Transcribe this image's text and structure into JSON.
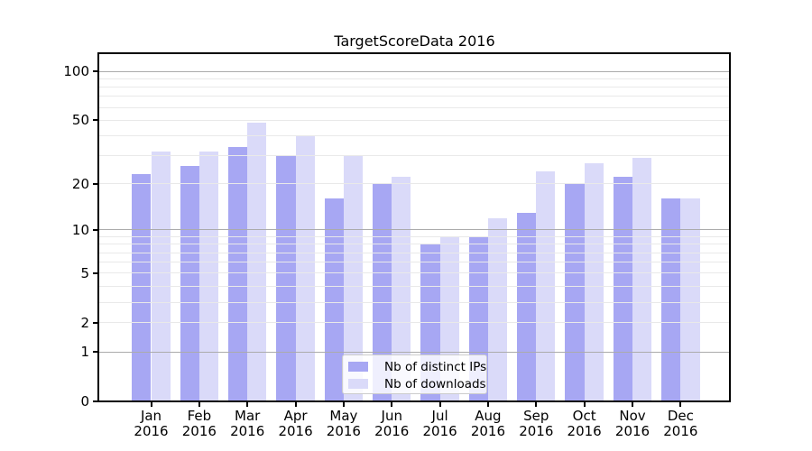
{
  "chart_data": {
    "type": "bar",
    "title": "TargetScoreData 2016",
    "categories": [
      "Jan",
      "Feb",
      "Mar",
      "Apr",
      "May",
      "Jun",
      "Jul",
      "Aug",
      "Sep",
      "Oct",
      "Nov",
      "Dec"
    ],
    "category_year": "2016",
    "series": [
      {
        "name": "Nb of distinct IPs",
        "color": "#a7a7f3",
        "values": [
          23,
          26,
          34,
          30,
          16,
          20,
          8,
          9,
          13,
          20,
          22,
          16
        ]
      },
      {
        "name": "Nb of downloads",
        "color": "#dadaf9",
        "values": [
          32,
          32,
          48,
          40,
          30,
          22,
          9,
          12,
          24,
          27,
          29,
          16
        ]
      }
    ],
    "xlabel": "",
    "ylabel": "",
    "y_scale": "symlog-ln(1+v)",
    "ylim": [
      0,
      128
    ],
    "y_ticks": [
      100,
      50,
      20,
      10,
      5,
      2,
      1,
      0
    ],
    "y_major_gridlines": [
      1,
      10,
      100
    ],
    "y_minor_gridlines": [
      2,
      3,
      4,
      5,
      6,
      7,
      8,
      9,
      20,
      30,
      40,
      50,
      60,
      70,
      80,
      90
    ],
    "grid": true,
    "legend_position": "lower center",
    "background_color": "#ffffff",
    "text_color": "#000000",
    "spine_color": "#000000",
    "major_grid_color": "#ababab",
    "minor_grid_color": "#e9e9e9"
  }
}
